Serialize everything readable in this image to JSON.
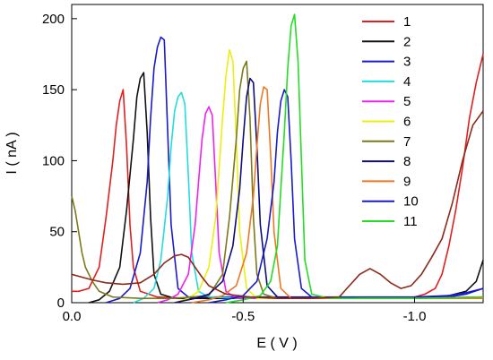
{
  "chart_data": {
    "type": "line",
    "title": "",
    "xlabel": "E ( V )",
    "ylabel": "I ( nA )",
    "xlim": [
      0.0,
      -1.2
    ],
    "ylim": [
      0,
      210
    ],
    "x_ticks": [
      0.0,
      -0.5,
      -1.0
    ],
    "x_tick_labels": [
      "0.0",
      "-0.5",
      "-1.0"
    ],
    "y_ticks": [
      0,
      50,
      100,
      150,
      200
    ],
    "y_tick_labels": [
      "0",
      "50",
      "100",
      "150",
      "200"
    ],
    "grid": false,
    "legend_position": "top-right",
    "series": [
      {
        "name": "1",
        "color": "#e02020",
        "x": [
          0.0,
          -0.02,
          -0.05,
          -0.08,
          -0.1,
          -0.12,
          -0.13,
          -0.14,
          -0.15,
          -0.16,
          -0.17,
          -0.18,
          -0.2,
          -0.25,
          -0.35,
          -0.5,
          -0.7,
          -0.85,
          -0.95,
          -1.0,
          -1.03,
          -1.06,
          -1.08,
          -1.1,
          -1.12,
          -1.14,
          -1.16,
          -1.18,
          -1.2
        ],
        "y": [
          8,
          8,
          10,
          25,
          60,
          100,
          125,
          142,
          150,
          110,
          55,
          25,
          8,
          4,
          3,
          3,
          3,
          3,
          3,
          4,
          6,
          10,
          20,
          40,
          65,
          95,
          130,
          155,
          175
        ]
      },
      {
        "name": "2",
        "color": "#111111",
        "x": [
          -0.05,
          -0.08,
          -0.11,
          -0.14,
          -0.16,
          -0.18,
          -0.19,
          -0.2,
          -0.21,
          -0.22,
          -0.23,
          -0.24,
          -0.26,
          -0.3,
          -0.5,
          -0.8,
          -1.0,
          -1.05,
          -1.1,
          -1.15,
          -1.18,
          -1.2
        ],
        "y": [
          0,
          2,
          8,
          25,
          65,
          115,
          145,
          158,
          162,
          120,
          60,
          20,
          6,
          3,
          3,
          3,
          3,
          4,
          5,
          8,
          15,
          30
        ]
      },
      {
        "name": "3",
        "color": "#1a1acc",
        "x": [
          -0.1,
          -0.14,
          -0.17,
          -0.2,
          -0.22,
          -0.23,
          -0.24,
          -0.25,
          -0.26,
          -0.27,
          -0.28,
          -0.29,
          -0.31,
          -0.34,
          -0.5,
          -0.8,
          -1.0,
          -1.1,
          -1.15,
          -1.2
        ],
        "y": [
          0,
          3,
          10,
          35,
          85,
          130,
          165,
          180,
          187,
          185,
          120,
          55,
          10,
          4,
          4,
          4,
          4,
          5,
          7,
          10
        ]
      },
      {
        "name": "4",
        "color": "#22dddd",
        "x": [
          -0.18,
          -0.21,
          -0.24,
          -0.26,
          -0.28,
          -0.29,
          -0.3,
          -0.31,
          -0.32,
          -0.33,
          -0.34,
          -0.35,
          -0.37,
          -0.4,
          -0.5,
          -0.8,
          -1.0,
          -1.2
        ],
        "y": [
          0,
          3,
          10,
          30,
          75,
          110,
          135,
          145,
          148,
          140,
          90,
          35,
          8,
          4,
          3,
          3,
          3,
          4
        ]
      },
      {
        "name": "5",
        "color": "#ee22ee",
        "x": [
          -0.25,
          -0.28,
          -0.31,
          -0.34,
          -0.36,
          -0.37,
          -0.38,
          -0.39,
          -0.4,
          -0.41,
          -0.42,
          -0.43,
          -0.45,
          -0.48,
          -0.6,
          -0.8,
          -1.0,
          -1.2
        ],
        "y": [
          0,
          2,
          6,
          20,
          55,
          85,
          115,
          133,
          138,
          132,
          85,
          35,
          8,
          3,
          3,
          3,
          3,
          4
        ]
      },
      {
        "name": "6",
        "color": "#eeee10",
        "x": [
          -0.3,
          -0.34,
          -0.37,
          -0.4,
          -0.42,
          -0.43,
          -0.44,
          -0.45,
          -0.46,
          -0.47,
          -0.48,
          -0.49,
          -0.51,
          -0.54,
          -0.7,
          -0.9,
          -1.0,
          -1.2
        ],
        "y": [
          0,
          3,
          8,
          25,
          60,
          95,
          130,
          160,
          178,
          170,
          115,
          50,
          10,
          3,
          3,
          3,
          3,
          3
        ]
      },
      {
        "name": "7",
        "color": "#7a7a1a",
        "x": [
          0.0,
          -0.01,
          -0.02,
          -0.03,
          -0.04,
          -0.06,
          -0.08,
          -0.12,
          -0.2,
          -0.3,
          -0.4,
          -0.44,
          -0.46,
          -0.48,
          -0.49,
          -0.5,
          -0.51,
          -0.52,
          -0.53,
          -0.54,
          -0.56,
          -0.6,
          -0.8,
          -1.0,
          -1.2
        ],
        "y": [
          75,
          65,
          50,
          35,
          25,
          15,
          8,
          4,
          3,
          3,
          5,
          20,
          60,
          115,
          150,
          165,
          170,
          130,
          60,
          20,
          6,
          3,
          3,
          3,
          4
        ]
      },
      {
        "name": "8",
        "color": "#0d0d80",
        "x": [
          -0.3,
          -0.36,
          -0.4,
          -0.44,
          -0.47,
          -0.49,
          -0.5,
          -0.51,
          -0.52,
          -0.53,
          -0.54,
          -0.55,
          -0.57,
          -0.6,
          -0.8,
          -1.0,
          -1.2
        ],
        "y": [
          0,
          3,
          6,
          15,
          40,
          80,
          115,
          145,
          158,
          155,
          110,
          55,
          12,
          4,
          3,
          3,
          3
        ]
      },
      {
        "name": "9",
        "color": "#ee7722",
        "x": [
          -0.35,
          -0.4,
          -0.44,
          -0.48,
          -0.51,
          -0.53,
          -0.54,
          -0.55,
          -0.56,
          -0.57,
          -0.58,
          -0.59,
          -0.61,
          -0.64,
          -0.8,
          -1.0,
          -1.2
        ],
        "y": [
          0,
          2,
          5,
          12,
          35,
          75,
          110,
          140,
          152,
          150,
          105,
          50,
          10,
          3,
          3,
          3,
          3
        ]
      },
      {
        "name": "10",
        "color": "#1a1acc",
        "x": [
          -0.4,
          -0.45,
          -0.5,
          -0.54,
          -0.57,
          -0.59,
          -0.6,
          -0.61,
          -0.62,
          -0.63,
          -0.64,
          -0.65,
          -0.67,
          -0.7,
          -0.85,
          -1.0,
          -1.1,
          -1.15,
          -1.2
        ],
        "y": [
          0,
          2,
          5,
          15,
          45,
          85,
          120,
          142,
          150,
          145,
          100,
          45,
          10,
          4,
          3,
          3,
          4,
          6,
          10
        ]
      },
      {
        "name": "11",
        "color": "#22dd22",
        "x": [
          -0.45,
          -0.5,
          -0.55,
          -0.58,
          -0.6,
          -0.61,
          -0.62,
          -0.63,
          -0.64,
          -0.65,
          -0.66,
          -0.67,
          -0.68,
          -0.7,
          -0.75,
          -0.9,
          -1.0,
          -1.2
        ],
        "y": [
          0,
          2,
          5,
          15,
          40,
          80,
          120,
          165,
          195,
          203,
          170,
          100,
          30,
          6,
          3,
          3,
          3,
          4
        ]
      },
      {
        "name": "",
        "color": "#8b2a1a",
        "x": [
          0.0,
          -0.03,
          -0.06,
          -0.1,
          -0.15,
          -0.2,
          -0.24,
          -0.27,
          -0.3,
          -0.32,
          -0.34,
          -0.36,
          -0.38,
          -0.4,
          -0.45,
          -0.52,
          -0.6,
          -0.7,
          -0.78,
          -0.81,
          -0.84,
          -0.87,
          -0.9,
          -0.93,
          -0.96,
          -0.99,
          -1.02,
          -1.05,
          -1.08,
          -1.11,
          -1.14,
          -1.17,
          -1.2
        ],
        "y": [
          20,
          18,
          16,
          14,
          13,
          14,
          20,
          28,
          33,
          34,
          32,
          25,
          18,
          12,
          6,
          4,
          3,
          3,
          4,
          12,
          20,
          24,
          20,
          14,
          10,
          12,
          20,
          32,
          45,
          70,
          100,
          125,
          135
        ]
      }
    ]
  }
}
